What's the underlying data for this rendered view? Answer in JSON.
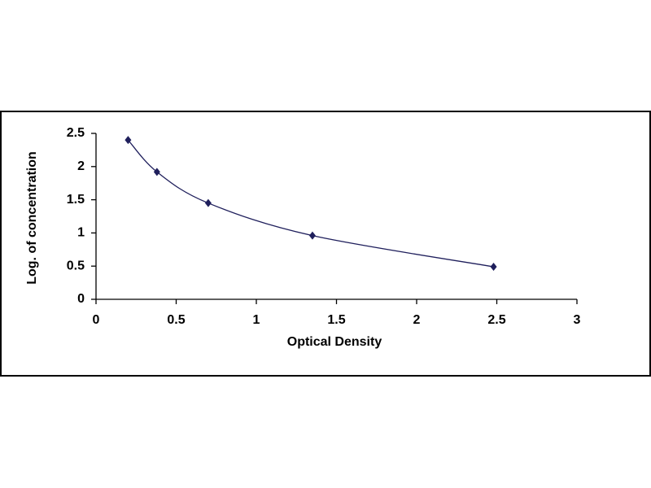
{
  "chart_data": {
    "type": "scatter",
    "x_label": "Optical Density",
    "y_label": "Log. of concentration",
    "x": [
      0.2,
      0.38,
      0.7,
      1.35,
      2.48
    ],
    "values": [
      2.4,
      1.92,
      1.45,
      0.96,
      0.49
    ],
    "color": "#1f1f5c",
    "smooth_line": true,
    "xlim": [
      0,
      3
    ],
    "xticks": [
      0,
      0.5,
      1,
      1.5,
      2,
      2.5,
      3
    ],
    "ylim": [
      0,
      2.5
    ],
    "yticks": [
      0,
      0.5,
      1,
      1.5,
      2,
      2.5
    ]
  }
}
